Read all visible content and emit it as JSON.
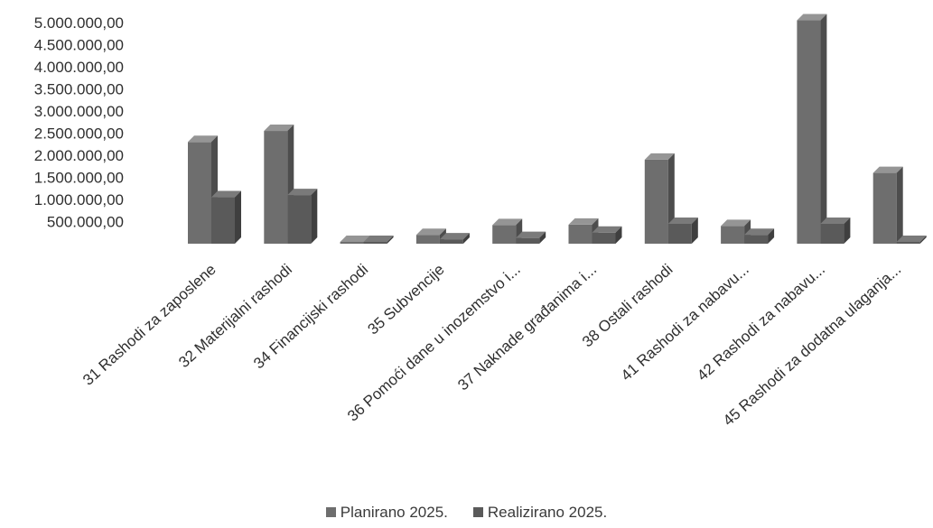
{
  "chart_data": {
    "type": "bar",
    "categories": [
      "31 Rashodi za zaposlene",
      "32 Materijalni rashodi",
      "34 Financijski rashodi",
      "35 Subvencije",
      "36 Pomoći dane u inozemstvo i...",
      "37 Naknade građanima i...",
      "38 Ostali rashodi",
      "41 Rashodi za nabavu...",
      "42 Rashodi za nabavu...",
      "45 Rashodi za dodatna ulaganja..."
    ],
    "series": [
      {
        "name": "Planirano 2025.",
        "color": "#6e6e6e",
        "values": [
          2300000,
          2550000,
          30000,
          200000,
          420000,
          430000,
          1900000,
          400000,
          5050000,
          1600000
        ]
      },
      {
        "name": "Realizirano 2025.",
        "color": "#5a5a5a",
        "values": [
          1050000,
          1100000,
          25000,
          100000,
          130000,
          250000,
          450000,
          200000,
          450000,
          20000
        ]
      }
    ],
    "ylim": [
      0,
      5000000
    ],
    "yticks": [
      "500.000,00",
      "1.000.000,00",
      "1.500.000,00",
      "2.000.000,00",
      "2.500.000,00",
      "3.000.000,00",
      "3.500.000,00",
      "4.000.000,00",
      "4.500.000,00",
      "5.000.000,00"
    ],
    "legend_position": "bottom",
    "grid": false
  }
}
